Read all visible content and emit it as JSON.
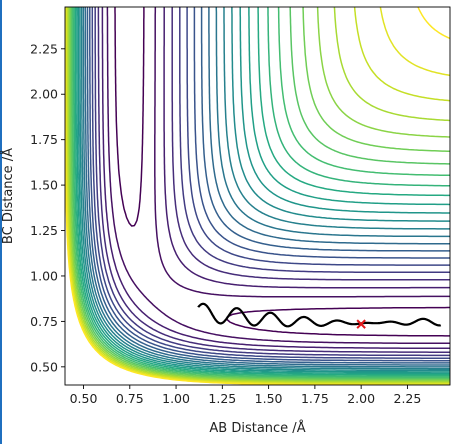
{
  "chart_data": {
    "type": "contour",
    "title": "",
    "xlabel": "AB Distance /Å",
    "ylabel": "BC Distance /Å",
    "xlim": [
      0.4,
      2.48
    ],
    "ylim": [
      0.4,
      2.48
    ],
    "xticks": [
      {
        "value": 0.5,
        "label": "0.50"
      },
      {
        "value": 0.75,
        "label": "0.75"
      },
      {
        "value": 1.0,
        "label": "1.00"
      },
      {
        "value": 1.25,
        "label": "1.25"
      },
      {
        "value": 1.5,
        "label": "1.50"
      },
      {
        "value": 1.75,
        "label": "1.75"
      },
      {
        "value": 2.0,
        "label": "2.00"
      },
      {
        "value": 2.25,
        "label": "2.25"
      }
    ],
    "yticks": [
      {
        "value": 0.5,
        "label": "0.50"
      },
      {
        "value": 0.75,
        "label": "0.75"
      },
      {
        "value": 1.0,
        "label": "1.00"
      },
      {
        "value": 1.25,
        "label": "1.25"
      },
      {
        "value": 1.5,
        "label": "1.50"
      },
      {
        "value": 1.75,
        "label": "1.75"
      },
      {
        "value": 2.0,
        "label": "2.00"
      },
      {
        "value": 2.25,
        "label": "2.25"
      }
    ],
    "grid": false,
    "colormap": "viridis",
    "contour_levels": 24,
    "trajectory": {
      "color": "#000000",
      "start": [
        1.12,
        0.8
      ],
      "end": [
        2.43,
        0.75
      ]
    },
    "marker": {
      "symbol": "x",
      "color": "#e31a1c",
      "x": 2.0,
      "y": 0.735
    }
  }
}
